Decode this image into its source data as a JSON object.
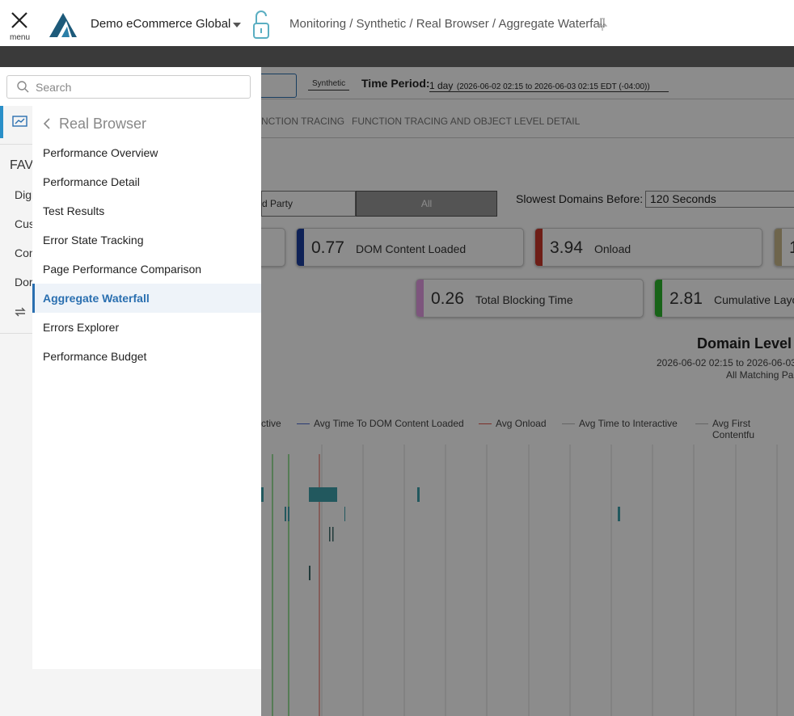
{
  "header": {
    "menu_label": "menu",
    "org": "Demo eCommerce Global",
    "breadcrumb": "Monitoring / Synthetic / Real Browser / Aggregate Waterfall"
  },
  "sidebar": {
    "search_placeholder": "Search",
    "rail_heading": "FAV",
    "rail_items": [
      "Digi",
      "Cus",
      "Con",
      "Dor"
    ],
    "submenu": {
      "title": "Real Browser",
      "items": [
        "Performance Overview",
        "Performance Detail",
        "Test Results",
        "Error State Tracking",
        "Page Performance Comparison",
        "Aggregate Waterfall",
        "Errors Explorer",
        "Performance Budget"
      ],
      "active": "Aggregate Waterfall"
    }
  },
  "toolbar": {
    "source": "Synthetic",
    "time_period_label": "Time Period:",
    "time_period_value": "1 day",
    "time_period_range": "(2026-06-02 02:15 to 2026-06-03 02:15 EDT (-04:00))"
  },
  "tabs": [
    "NCTION TRACING",
    "FUNCTION TRACING AND OBJECT LEVEL DETAIL"
  ],
  "filter": {
    "options": [
      "d Party",
      "All"
    ],
    "slowest_label": "Slowest Domains Before:",
    "slowest_value": "120 Seconds"
  },
  "metrics": [
    {
      "value": 0.77,
      "label": "DOM Content Loaded",
      "color": "#1d3f9e"
    },
    {
      "value": 3.94,
      "label": "Onload",
      "color": "#c8372a"
    },
    {
      "value": 1,
      "color": "#c9b98a"
    },
    {
      "value": 0.26,
      "label": "Total Blocking Time",
      "color": "#e49be4"
    },
    {
      "value": 2.81,
      "label": "Cumulative Layo",
      "color": "#2db52d"
    }
  ],
  "report": {
    "title": "Domain Level A",
    "range": "2026-06-02 02:15 to 2026-06-03",
    "filter": "All Matching Pa",
    "legend": [
      {
        "name": "ctive"
      },
      {
        "name": "Avg Time To DOM Content Loaded",
        "color": "#4a6bd0"
      },
      {
        "name": "Avg Onload",
        "color": "#e0554a"
      },
      {
        "name": "Avg Time to Interactive",
        "color": "#b8b8b8"
      },
      {
        "name": "Avg First Contentfu",
        "color": "#b8b8b8"
      }
    ]
  }
}
